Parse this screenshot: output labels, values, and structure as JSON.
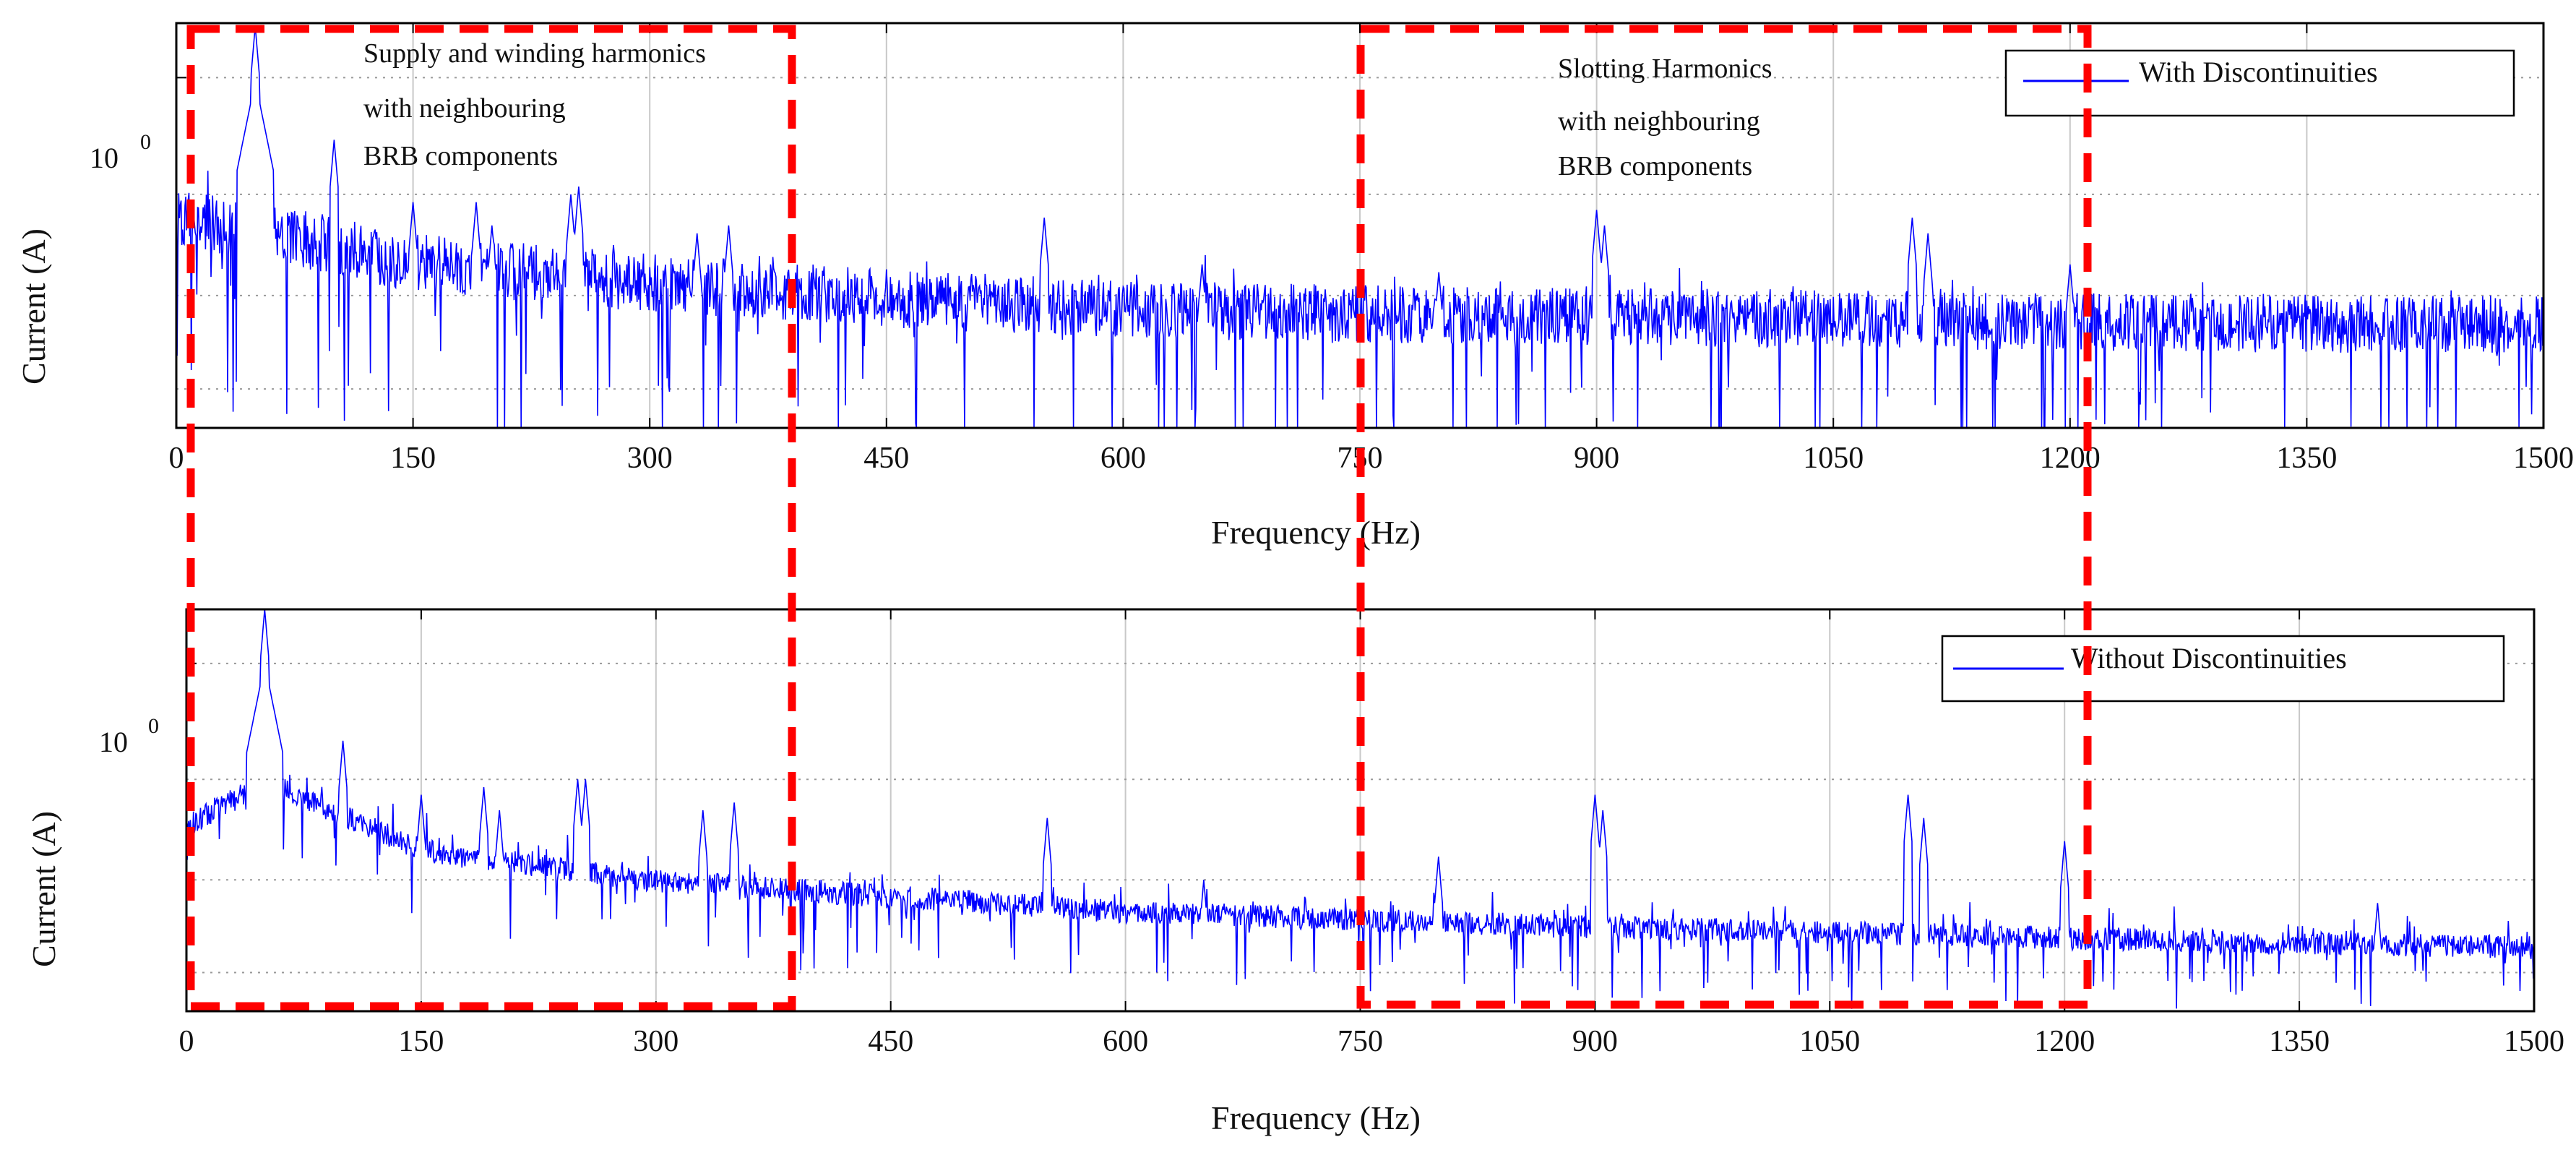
{
  "colors": {
    "series": "#0000ff",
    "annotation_box": "#ff0000",
    "grid": "#c8c8c8",
    "axes": "#000000",
    "background": "#ffffff"
  },
  "chart_data": [
    {
      "type": "line",
      "title": "",
      "xlabel": "Frequency (Hz)",
      "ylabel": "Current (A)",
      "yscale": "log",
      "xlim": [
        0,
        1500
      ],
      "ylim_log10": [
        -2.8,
        -0.2
      ],
      "xticks": [
        0,
        150,
        300,
        450,
        600,
        750,
        900,
        1050,
        1200,
        1350,
        1500
      ],
      "xtick_labels": [
        "0",
        "150",
        "300",
        "450",
        "600",
        "750",
        "900",
        "1050",
        "1200",
        "1350",
        "1500"
      ],
      "ytick_label_base": "10",
      "ytick_label_exp": "0",
      "legend": {
        "label": "With Discontinuities",
        "placement": "top-right"
      },
      "grid": true,
      "series": [
        {
          "name": "With Discontinuities",
          "description": "dense FFT current spectrum, noise floor shown as envelope",
          "floor_points_hz_log10": [
            [
              0,
              -1.45
            ],
            [
              50,
              -1.5
            ],
            [
              150,
              -1.72
            ],
            [
              300,
              -1.85
            ],
            [
              450,
              -1.95
            ],
            [
              600,
              -2.02
            ],
            [
              750,
              -2.05
            ],
            [
              900,
              -2.07
            ],
            [
              1050,
              -2.08
            ],
            [
              1200,
              -2.1
            ],
            [
              1500,
              -2.12
            ]
          ],
          "noise_depth": 0.75,
          "peaks_hz_log10": [
            [
              50,
              -0.22
            ],
            [
              100,
              -0.95
            ],
            [
              150,
              -1.35
            ],
            [
              190,
              -1.35
            ],
            [
              200,
              -1.5
            ],
            [
              250,
              -1.3
            ],
            [
              255,
              -1.25
            ],
            [
              330,
              -1.55
            ],
            [
              350,
              -1.5
            ],
            [
              550,
              -1.45
            ],
            [
              650,
              -1.75
            ],
            [
              800,
              -1.8
            ],
            [
              900,
              -1.4
            ],
            [
              905,
              -1.5
            ],
            [
              1100,
              -1.45
            ],
            [
              1110,
              -1.55
            ],
            [
              1200,
              -1.75
            ]
          ]
        }
      ],
      "annotations": [
        {
          "text_lines": [
            "Supply and winding harmonics",
            "with neighbouring",
            "BRB components"
          ],
          "x_range_hz": [
            7,
            390
          ]
        },
        {
          "text_lines": [
            "Slotting Harmonics",
            "with neighbouring",
            "BRB components"
          ],
          "x_range_hz": [
            752,
            1220
          ]
        }
      ]
    },
    {
      "type": "line",
      "title": "",
      "xlabel": "Frequency (Hz)",
      "ylabel": "Current (A)",
      "yscale": "log",
      "xlim": [
        0,
        1500
      ],
      "ylim_log10": [
        -2.8,
        -0.2
      ],
      "xticks": [
        0,
        150,
        300,
        450,
        600,
        750,
        900,
        1050,
        1200,
        1350,
        1500
      ],
      "xtick_labels": [
        "0",
        "150",
        "300",
        "450",
        "600",
        "750",
        "900",
        "1050",
        "1200",
        "1350",
        "1500"
      ],
      "ytick_label_base": "10",
      "ytick_label_exp": "0",
      "legend": {
        "label": "Without Discontinuities",
        "placement": "top-right"
      },
      "grid": true,
      "series": [
        {
          "name": "Without Discontinuities",
          "description": "cleaner FFT current spectrum, noise floor shown as envelope",
          "floor_points_hz_log10": [
            [
              0,
              -1.6
            ],
            [
              50,
              -1.3
            ],
            [
              150,
              -1.75
            ],
            [
              300,
              -1.95
            ],
            [
              450,
              -2.05
            ],
            [
              600,
              -2.15
            ],
            [
              750,
              -2.2
            ],
            [
              900,
              -2.25
            ],
            [
              1050,
              -2.28
            ],
            [
              1200,
              -2.32
            ],
            [
              1500,
              -2.38
            ]
          ],
          "noise_depth": 0.3,
          "peaks_hz_log10": [
            [
              50,
              -0.2
            ],
            [
              100,
              -1.05
            ],
            [
              150,
              -1.4
            ],
            [
              190,
              -1.35
            ],
            [
              200,
              -1.5
            ],
            [
              250,
              -1.3
            ],
            [
              255,
              -1.3
            ],
            [
              330,
              -1.5
            ],
            [
              350,
              -1.45
            ],
            [
              550,
              -1.55
            ],
            [
              650,
              -1.95
            ],
            [
              800,
              -1.8
            ],
            [
              900,
              -1.4
            ],
            [
              905,
              -1.5
            ],
            [
              1100,
              -1.4
            ],
            [
              1110,
              -1.55
            ],
            [
              1200,
              -1.7
            ],
            [
              1400,
              -2.1
            ]
          ]
        }
      ]
    }
  ]
}
